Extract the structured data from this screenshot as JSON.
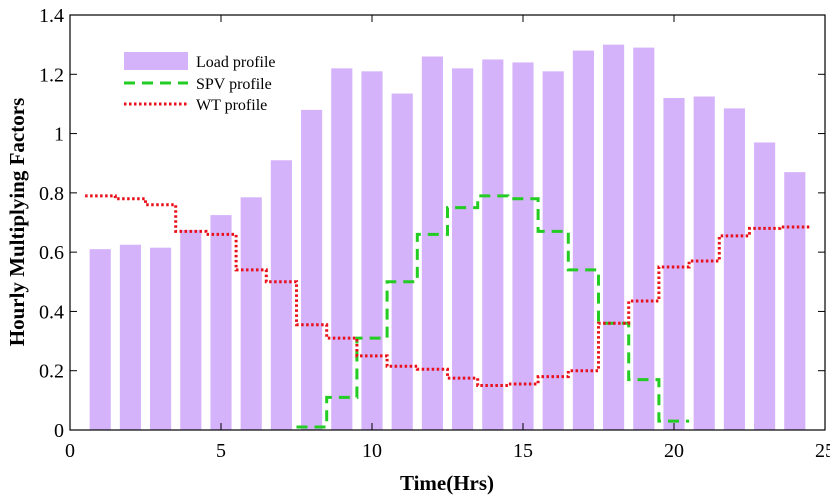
{
  "chart_data": {
    "type": "bar",
    "title": "",
    "xlabel": "Time(Hrs)",
    "ylabel": "Hourly Multiplying Factors",
    "xlim": [
      0,
      25
    ],
    "ylim": [
      0,
      1.4
    ],
    "xticks": [
      0,
      5,
      10,
      15,
      20,
      25
    ],
    "yticks": [
      0,
      0.2,
      0.4,
      0.6,
      0.8,
      1,
      1.2,
      1.4
    ],
    "xtick_labels": [
      "0",
      "5",
      "10",
      "15",
      "20",
      "25"
    ],
    "ytick_labels": [
      "0",
      "0.2",
      "0.4",
      "0.6",
      "0.8",
      "1",
      "1.2",
      "1.4"
    ],
    "grid": false,
    "legend_position": "top-left",
    "x": [
      1,
      2,
      3,
      4,
      5,
      6,
      7,
      8,
      9,
      10,
      11,
      12,
      13,
      14,
      15,
      16,
      17,
      18,
      19,
      20,
      21,
      22,
      23,
      24
    ],
    "series": [
      {
        "name": "Load profile",
        "style": "bar",
        "color": "#d5b3fa",
        "values": [
          0.61,
          0.625,
          0.615,
          0.675,
          0.725,
          0.785,
          0.91,
          1.08,
          1.22,
          1.21,
          1.135,
          1.26,
          1.22,
          1.25,
          1.24,
          1.21,
          1.28,
          1.3,
          1.29,
          1.12,
          1.125,
          1.085,
          0.97,
          0.87
        ]
      },
      {
        "name": "SPV profile",
        "style": "dashed-step",
        "color": "#22cc22",
        "values": [
          0,
          0,
          0,
          0,
          0,
          0,
          0,
          0.01,
          0.11,
          0.31,
          0.5,
          0.66,
          0.75,
          0.79,
          0.78,
          0.67,
          0.54,
          0.36,
          0.17,
          0.03,
          0,
          0,
          0,
          0
        ]
      },
      {
        "name": "WT profile",
        "style": "dotted-step",
        "color": "#e8101a",
        "values": [
          0.79,
          0.78,
          0.76,
          0.67,
          0.66,
          0.54,
          0.5,
          0.355,
          0.31,
          0.25,
          0.215,
          0.205,
          0.175,
          0.15,
          0.155,
          0.18,
          0.2,
          0.36,
          0.435,
          0.55,
          0.57,
          0.655,
          0.68,
          0.685
        ]
      }
    ]
  }
}
